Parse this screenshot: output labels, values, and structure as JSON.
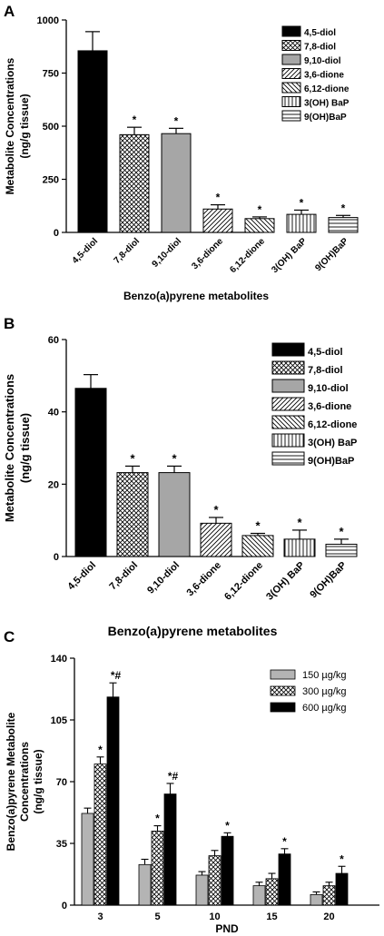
{
  "panel_letters": [
    "A",
    "B",
    "C"
  ],
  "chart_data": [
    {
      "type": "bar",
      "categories": [
        "4,5-diol",
        "7,8-diol",
        "9,10-diol",
        "3,6-dione",
        "6,12-dione",
        "3(OH) BaP",
        "9(OH)BaP"
      ],
      "values": [
        855,
        460,
        465,
        110,
        65,
        85,
        70
      ],
      "errors": [
        90,
        35,
        25,
        20,
        8,
        20,
        10
      ],
      "annotations": [
        "",
        "*",
        "*",
        "*",
        "*",
        "*",
        "*"
      ],
      "patterns": [
        "solid-black",
        "crosshatch",
        "solid-gray",
        "diag-right",
        "diag-left",
        "vertical",
        "horizontal"
      ],
      "ylabel_lines": [
        "Metabolite Concentrations",
        "(ng/g tissue)"
      ],
      "xlabel": "Benzo(a)pyrene metabolites",
      "ylim": [
        0,
        1000
      ],
      "yticks": [
        0,
        250,
        500,
        750,
        1000
      ],
      "legend": [
        "4,5-diol",
        "7,8-diol",
        "9,10-diol",
        "3,6-dione",
        "6,12-dione",
        "3(OH) BaP",
        "9(OH)BaP"
      ],
      "legend_position": "top-right"
    },
    {
      "type": "bar",
      "categories": [
        "4,5-diol",
        "7,8-diol",
        "9,10-diol",
        "3,6-dione",
        "6,12-dione",
        "3(OH) BaP",
        "9(OH)BaP"
      ],
      "values": [
        46.5,
        23.2,
        23.2,
        9.2,
        5.8,
        4.8,
        3.4
      ],
      "errors": [
        3.8,
        1.8,
        1.8,
        1.6,
        0.6,
        2.5,
        1.4
      ],
      "annotations": [
        "",
        "*",
        "*",
        "*",
        "*",
        "*",
        "*"
      ],
      "patterns": [
        "solid-black",
        "crosshatch",
        "solid-gray",
        "diag-right",
        "diag-left",
        "vertical",
        "horizontal"
      ],
      "ylabel_lines": [
        "Metabolite Concentrations",
        "(ng/g tissue)"
      ],
      "xlabel": "Benzo(a)pyrene metabolites",
      "ylim": [
        0,
        60
      ],
      "yticks": [
        0,
        20,
        40,
        60
      ],
      "legend": [
        "4,5-diol",
        "7,8-diol",
        "9,10-diol",
        "3,6-dione",
        "6,12-dione",
        "3(OH) BaP",
        "9(OH)BaP"
      ],
      "legend_position": "top-right"
    },
    {
      "type": "bar",
      "categories": [
        "3",
        "5",
        "10",
        "15",
        "20"
      ],
      "series": [
        {
          "name": "150 µg/kg",
          "pattern": "solid-lightgray",
          "values": [
            52,
            23,
            17,
            11,
            6
          ],
          "errors": [
            3,
            3,
            2,
            2,
            1.5
          ],
          "annotations": [
            "",
            "",
            "",
            "",
            ""
          ]
        },
        {
          "name": "300 µg/kg",
          "pattern": "crosshatch",
          "values": [
            80,
            42,
            28,
            15,
            11
          ],
          "errors": [
            4,
            3,
            3,
            3,
            2
          ],
          "annotations": [
            "*",
            "*",
            "",
            "",
            ""
          ]
        },
        {
          "name": "600 µg/kg",
          "pattern": "solid-black",
          "values": [
            118,
            63,
            39,
            29,
            18
          ],
          "errors": [
            8,
            6,
            2,
            3,
            4
          ],
          "annotations": [
            "*#",
            "*#",
            "*",
            "*",
            "*"
          ]
        }
      ],
      "ylabel_lines": [
        "Benzo(a)pyrene Metabolite",
        "Concentrations",
        "(ng/g tissue)"
      ],
      "xlabel": "PND",
      "ylim": [
        0,
        140
      ],
      "yticks": [
        0,
        35,
        70,
        105,
        140
      ],
      "legend_position": "top-right"
    }
  ]
}
